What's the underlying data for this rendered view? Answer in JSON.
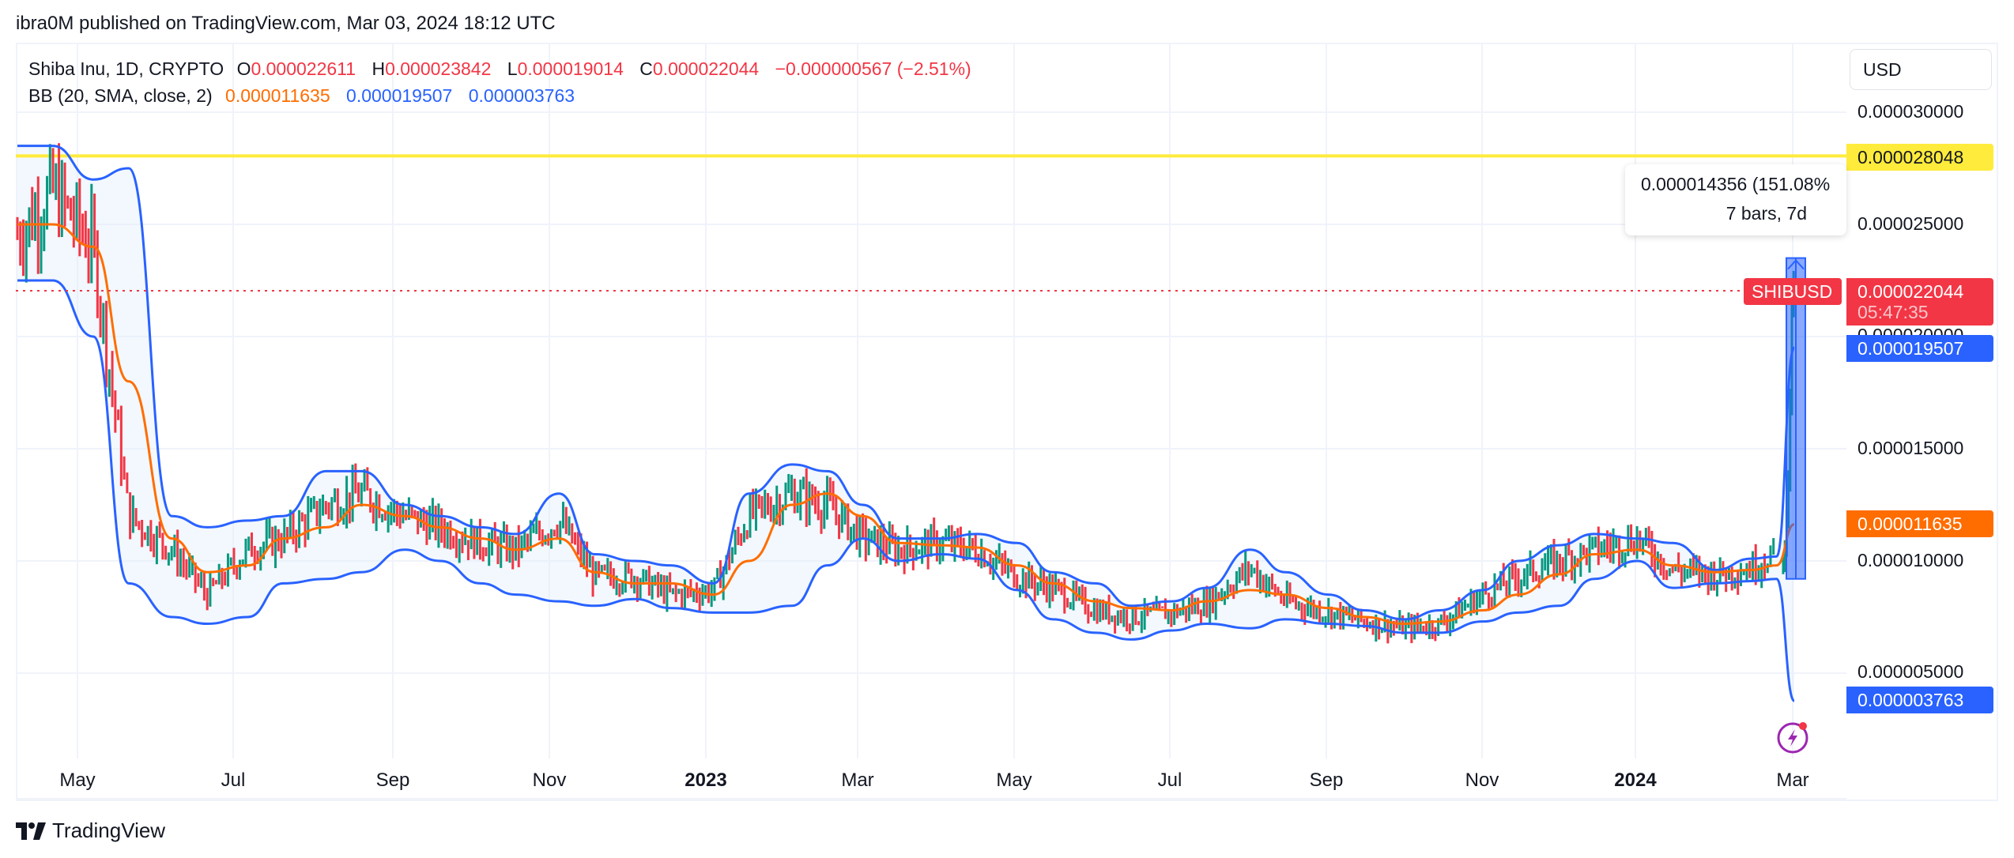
{
  "header": {
    "published": "ibra0M published on TradingView.com, Mar 03, 2024 18:12 UTC"
  },
  "legend": {
    "symbol": "Shiba Inu, 1D, CRYPTO",
    "open_label": "O",
    "open": "0.000022611",
    "high_label": "H",
    "high": "0.000023842",
    "low_label": "L",
    "low": "0.000019014",
    "close_label": "C",
    "close": "0.000022044",
    "change": "−0.000000567 (−2.51%)",
    "bb_label": "BB (20, SMA, close, 2)",
    "bb_basis": "0.000011635",
    "bb_upper": "0.000019507",
    "bb_lower": "0.000003763"
  },
  "price_axis": {
    "currency_button": "USD",
    "ticks": [
      "0.000030000",
      "0.000025000",
      "0.000020000",
      "0.000015000",
      "0.000010000",
      "0.000005000"
    ],
    "tags": {
      "horizontal_line": "0.000028048",
      "last_price": "0.000022044",
      "countdown": "05:47:35",
      "bb_upper": "0.000019507",
      "bb_basis": "0.000011635",
      "bb_lower": "0.000003763"
    }
  },
  "time_axis": {
    "ticks": [
      {
        "label": "May",
        "year": false
      },
      {
        "label": "Jul",
        "year": false
      },
      {
        "label": "Sep",
        "year": false
      },
      {
        "label": "Nov",
        "year": false
      },
      {
        "label": "2023",
        "year": true
      },
      {
        "label": "Mar",
        "year": false
      },
      {
        "label": "May",
        "year": false
      },
      {
        "label": "Jul",
        "year": false
      },
      {
        "label": "Sep",
        "year": false
      },
      {
        "label": "Nov",
        "year": false
      },
      {
        "label": "2024",
        "year": true
      },
      {
        "label": "Mar",
        "year": false
      }
    ]
  },
  "measure_tool": {
    "line1": "0.000014356 (151.08%",
    "line2": "7 bars, 7d"
  },
  "symbol_tag": "SHIBUSD",
  "branding": "TradingView",
  "colors": {
    "up": "#089981",
    "down": "#f23645",
    "bb_basis": "#ff6d00",
    "bb_band": "#2962ff",
    "bb_fill": "#e3effa",
    "hline": "#ffeb3b",
    "measure_fill": "#2962ff"
  },
  "chart_data": {
    "type": "candlestick",
    "title": "Shiba Inu, 1D, CRYPTO",
    "indicator": "Bollinger Bands (20, SMA, close, 2)",
    "ylabel": "USD",
    "ylim": [
      2.7e-06,
      3.12e-05
    ],
    "y_ticks": [
      5e-06,
      1e-05,
      1.5e-05,
      2e-05,
      2.5e-05,
      3e-05
    ],
    "x_ticks": [
      "May",
      "Jul",
      "Sep",
      "Nov",
      "2023",
      "Mar",
      "May",
      "Jul",
      "Sep",
      "Nov",
      "2024",
      "Mar"
    ],
    "horizontal_line": 2.8048e-05,
    "last": {
      "open": 2.2611e-05,
      "high": 2.3842e-05,
      "low": 1.9014e-05,
      "close": 2.2044e-05,
      "change": -5.67e-07,
      "change_pct": -2.51
    },
    "bb_last": {
      "basis": 1.1635e-05,
      "upper": 1.9507e-05,
      "lower": 3.763e-06
    },
    "measure": {
      "change": 1.4356e-05,
      "change_pct": 151.08,
      "bars": 7,
      "days": 7
    },
    "weekly_close_approx": {
      "x": [
        "2022-04-01",
        "2022-04-15",
        "2022-05-01",
        "2022-05-15",
        "2022-06-01",
        "2022-06-15",
        "2022-07-01",
        "2022-07-15",
        "2022-08-01",
        "2022-08-15",
        "2022-09-01",
        "2022-09-15",
        "2022-10-01",
        "2022-10-15",
        "2022-11-01",
        "2022-11-15",
        "2022-12-01",
        "2022-12-15",
        "2023-01-01",
        "2023-01-15",
        "2023-02-01",
        "2023-02-15",
        "2023-03-01",
        "2023-03-15",
        "2023-04-01",
        "2023-04-15",
        "2023-05-01",
        "2023-05-15",
        "2023-06-01",
        "2023-06-15",
        "2023-07-01",
        "2023-07-15",
        "2023-08-01",
        "2023-08-15",
        "2023-09-01",
        "2023-09-15",
        "2023-10-01",
        "2023-10-15",
        "2023-11-01",
        "2023-11-15",
        "2023-12-01",
        "2023-12-15",
        "2024-01-01",
        "2024-01-15",
        "2024-02-01",
        "2024-02-15",
        "2024-02-25",
        "2024-03-03"
      ],
      "close": [
        2.45e-05,
        2.65e-05,
        2.4e-05,
        1.2e-05,
        1.05e-05,
        8.5e-06,
        1.05e-05,
        1.1e-05,
        1.25e-05,
        1.3e-05,
        1.2e-05,
        1.15e-05,
        1.08e-05,
        1.05e-05,
        1.18e-05,
        9.3e-06,
        9.3e-06,
        8.5e-06,
        8.7e-06,
        1.2e-05,
        1.3e-05,
        1.25e-05,
        1.1e-05,
        1.05e-05,
        1.08e-05,
        1.05e-05,
        9.3e-06,
        8.8e-06,
        7.8e-06,
        7.5e-06,
        7.7e-06,
        8.1e-06,
        9.7e-06,
        8.2e-06,
        7.7e-06,
        7.3e-06,
        7e-06,
        7.2e-06,
        8.5e-06,
        9.3e-06,
        1e-05,
        1.05e-05,
        1.1e-05,
        9.6e-06,
        9.4e-06,
        9.7e-06,
        1.05e-05,
        2.2044e-05
      ],
      "bb_basis": [
        2.5e-05,
        2.5e-05,
        2.4e-05,
        1.8e-05,
        1.1e-05,
        9.5e-06,
        9.8e-06,
        1.1e-05,
        1.15e-05,
        1.25e-05,
        1.2e-05,
        1.15e-05,
        1.1e-05,
        1.05e-05,
        1.1e-05,
        9.5e-06,
        9e-06,
        9e-06,
        8.5e-06,
        1e-05,
        1.25e-05,
        1.3e-05,
        1.2e-05,
        1.08e-05,
        1.07e-05,
        1.06e-05,
        9.8e-06,
        9e-06,
        8.2e-06,
        7.9e-06,
        7.8e-06,
        8.2e-06,
        8.7e-06,
        8.5e-06,
        7.9e-06,
        7.5e-06,
        7.2e-06,
        7.3e-06,
        7.8e-06,
        8.5e-06,
        9.4e-06,
        1.03e-05,
        1.05e-05,
        9.8e-06,
        9.5e-06,
        9.6e-06,
        9.8e-06,
        1.1635e-05
      ],
      "bb_upper": [
        2.85e-05,
        2.85e-05,
        2.7e-05,
        2.75e-05,
        1.2e-05,
        1.15e-05,
        1.18e-05,
        1.2e-05,
        1.4e-05,
        1.4e-05,
        1.25e-05,
        1.2e-05,
        1.15e-05,
        1.12e-05,
        1.3e-05,
        1.03e-05,
        1e-05,
        9.8e-06,
        9e-06,
        1.3e-05,
        1.43e-05,
        1.4e-05,
        1.25e-05,
        1.1e-05,
        1.1e-05,
        1.12e-05,
        1.08e-05,
        9.5e-06,
        9e-06,
        8e-06,
        8.2e-06,
        8.8e-06,
        1.05e-05,
        9.5e-06,
        8.5e-06,
        7.8e-06,
        7.4e-06,
        7.8e-06,
        8.7e-06,
        1e-05,
        1.07e-05,
        1.12e-05,
        1.1e-05,
        1.08e-05,
        9.6e-06,
        1.01e-05,
        1.02e-05,
        1.9507e-05
      ],
      "bb_lower": [
        2.25e-05,
        2.25e-05,
        2e-05,
        9e-06,
        7.5e-06,
        7.2e-06,
        7.5e-06,
        9e-06,
        9.2e-06,
        9.5e-06,
        1.05e-05,
        1e-05,
        9e-06,
        8.5e-06,
        8.2e-06,
        8e-06,
        8.3e-06,
        7.9e-06,
        7.7e-06,
        7.7e-06,
        8e-06,
        9.8e-06,
        1.1e-05,
        1e-05,
        1.03e-05,
        1.01e-05,
        8.7e-06,
        7.4e-06,
        6.8e-06,
        6.5e-06,
        6.9e-06,
        7.2e-06,
        7e-06,
        7.4e-06,
        7.2e-06,
        7.1e-06,
        6.8e-06,
        6.8e-06,
        7.3e-06,
        7.7e-06,
        8e-06,
        9.2e-06,
        1e-05,
        8.8e-06,
        9e-06,
        9.1e-06,
        9.2e-06,
        3.763e-06
      ]
    }
  }
}
